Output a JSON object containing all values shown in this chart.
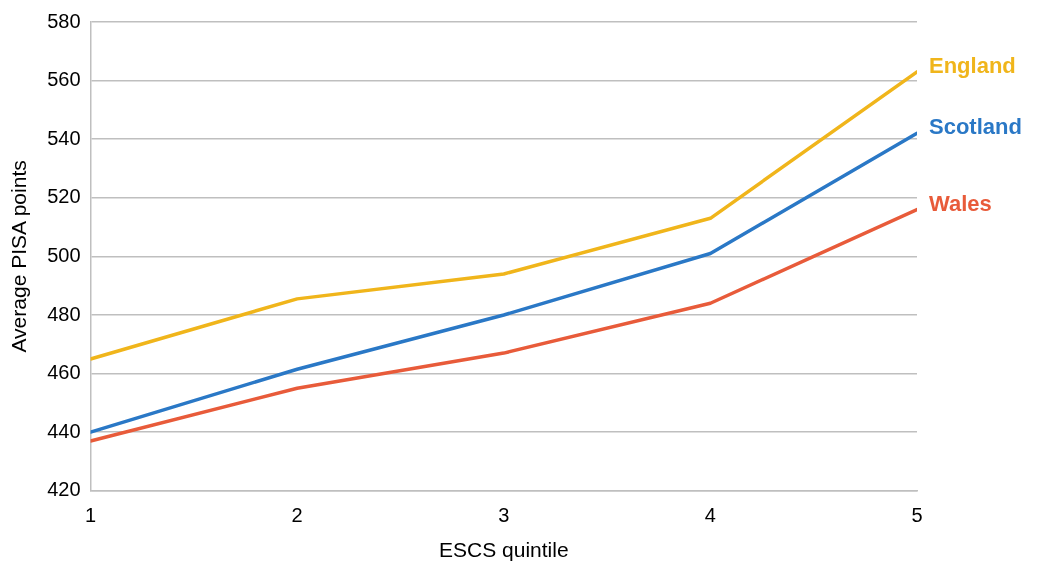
{
  "chart_data": {
    "type": "line",
    "xlabel": "ESCS quintile",
    "ylabel": "Average PISA points",
    "x": [
      1,
      2,
      3,
      4,
      5
    ],
    "xlim": [
      1,
      5
    ],
    "xticks": [
      1,
      2,
      3,
      4,
      5
    ],
    "ylim": [
      420,
      580
    ],
    "yticks": [
      420,
      440,
      460,
      480,
      500,
      520,
      540,
      560,
      580
    ],
    "grid": "y",
    "legend": false,
    "marker": "none",
    "line_style": "solid",
    "series": [
      {
        "name": "England",
        "color": "#f0b51b",
        "values": [
          465,
          485.5,
          494,
          513,
          563
        ]
      },
      {
        "name": "Scotland",
        "color": "#2a78c6",
        "values": [
          440,
          461.5,
          480,
          501,
          542
        ]
      },
      {
        "name": "Wales",
        "color": "#e85b3a",
        "values": [
          437,
          455,
          467,
          484,
          516
        ]
      }
    ]
  }
}
